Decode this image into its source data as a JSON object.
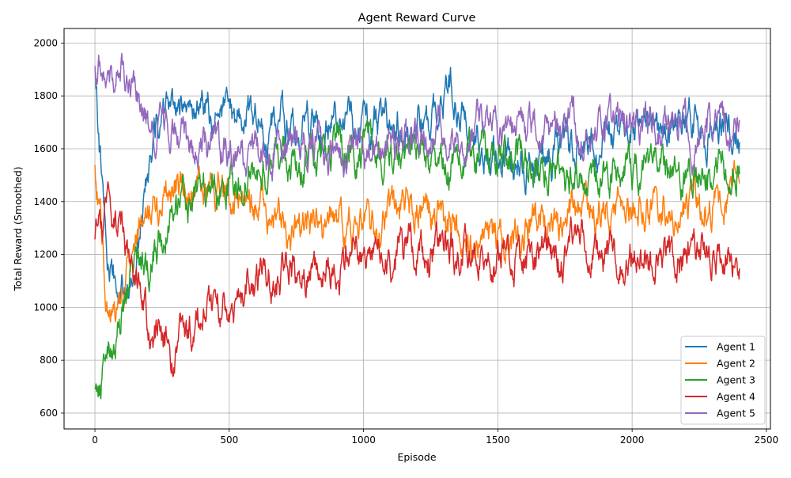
{
  "chart_data": {
    "type": "line",
    "title": "Agent Reward Curve",
    "xlabel": "Episode",
    "ylabel": "Total Reward (Smoothed)",
    "xlim": [
      -115,
      2515
    ],
    "ylim": [
      540,
      2055
    ],
    "xticks": [
      0,
      500,
      1000,
      1500,
      2000,
      2500
    ],
    "yticks": [
      600,
      800,
      1000,
      1200,
      1400,
      1600,
      1800,
      2000
    ],
    "grid": true,
    "legend_position": "lower-right",
    "x_start": 0,
    "x_end": 2400,
    "series": [
      {
        "name": "Agent 1",
        "color": "#1f77b4",
        "values": [
          1850,
          1150,
          1050,
          1150,
          1550,
          1700,
          1750,
          1800,
          1760,
          1740,
          1720,
          1700,
          1720,
          1680,
          1700,
          1680,
          1700,
          1700,
          1710,
          1690,
          1700,
          1680,
          1700,
          1700,
          1690,
          1700,
          1720,
          1850,
          1680,
          1620,
          1600,
          1580,
          1560,
          1540,
          1600,
          1620,
          1610,
          1620,
          1580,
          1650,
          1650,
          1660,
          1680,
          1640,
          1700,
          1720,
          1680,
          1700,
          1680,
          1700
        ]
      },
      {
        "name": "Agent 2",
        "color": "#ff7f0e",
        "values": [
          1500,
          1050,
          950,
          1300,
          1380,
          1420,
          1450,
          1440,
          1460,
          1470,
          1450,
          1420,
          1390,
          1330,
          1320,
          1300,
          1300,
          1290,
          1310,
          1300,
          1280,
          1290,
          1300,
          1390,
          1380,
          1360,
          1340,
          1290,
          1260,
          1250,
          1280,
          1260,
          1250,
          1300,
          1320,
          1340,
          1360,
          1360,
          1350,
          1380,
          1400,
          1380,
          1370,
          1380,
          1370,
          1400,
          1390,
          1380,
          1420,
          1450
        ]
      },
      {
        "name": "Agent 3",
        "color": "#2ca02c",
        "values": [
          650,
          800,
          960,
          1150,
          1180,
          1250,
          1350,
          1400,
          1430,
          1440,
          1450,
          1470,
          1500,
          1520,
          1550,
          1560,
          1570,
          1580,
          1590,
          1600,
          1590,
          1600,
          1600,
          1580,
          1560,
          1550,
          1540,
          1530,
          1560,
          1570,
          1580,
          1550,
          1560,
          1540,
          1540,
          1510,
          1480,
          1480,
          1470,
          1500,
          1500,
          1510,
          1530,
          1500,
          1490,
          1500,
          1500,
          1510,
          1520,
          1550
        ]
      },
      {
        "name": "Agent 4",
        "color": "#d62728",
        "values": [
          1300,
          1350,
          1280,
          1100,
          950,
          880,
          820,
          880,
          950,
          1000,
          1030,
          1060,
          1080,
          1100,
          1120,
          1140,
          1150,
          1150,
          1160,
          1170,
          1180,
          1180,
          1180,
          1200,
          1220,
          1210,
          1200,
          1200,
          1210,
          1200,
          1200,
          1210,
          1200,
          1190,
          1200,
          1210,
          1220,
          1210,
          1200,
          1200,
          1190,
          1200,
          1190,
          1200,
          1180,
          1190,
          1200,
          1210,
          1180,
          1150
        ]
      },
      {
        "name": "Agent 5",
        "color": "#9467bd",
        "values": [
          1950,
          1900,
          1880,
          1800,
          1700,
          1680,
          1650,
          1620,
          1600,
          1580,
          1570,
          1580,
          1560,
          1580,
          1600,
          1620,
          1600,
          1590,
          1580,
          1600,
          1590,
          1600,
          1600,
          1620,
          1640,
          1660,
          1650,
          1650,
          1660,
          1670,
          1680,
          1660,
          1650,
          1660,
          1670,
          1660,
          1670,
          1680,
          1660,
          1670,
          1680,
          1680,
          1660,
          1670,
          1680,
          1670,
          1680,
          1670,
          1660,
          1750
        ]
      }
    ]
  }
}
